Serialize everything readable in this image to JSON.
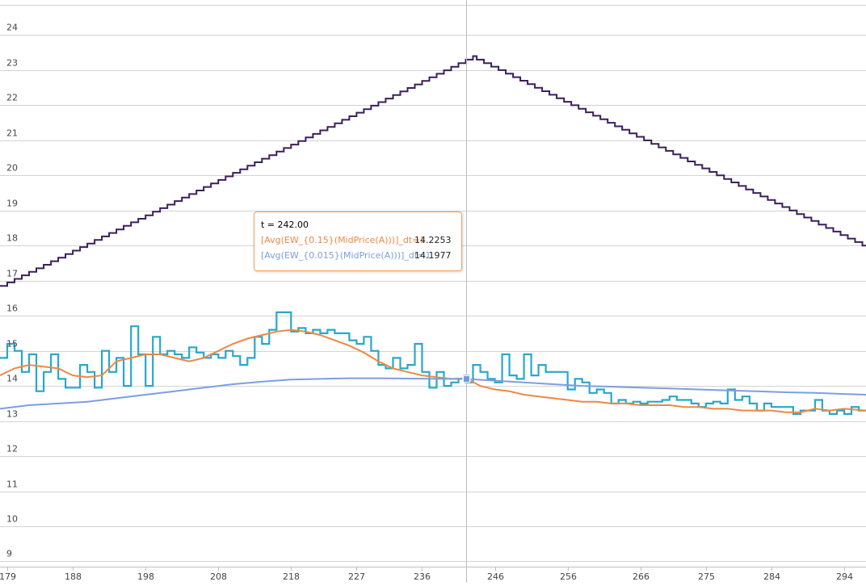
{
  "chart_data": {
    "type": "line",
    "title": "",
    "xlabel": "",
    "ylabel": "",
    "xlim": [
      178,
      297
    ],
    "ylim": [
      8.85,
      25
    ],
    "x_ticks": [
      179,
      188,
      198,
      208,
      218,
      227,
      236,
      246,
      256,
      266,
      275,
      284,
      294
    ],
    "y_ticks": [
      9,
      10,
      11,
      12,
      13,
      14,
      15,
      16,
      17,
      18,
      19,
      20,
      21,
      22,
      23,
      24
    ],
    "grid": true,
    "legend": "none",
    "crosshair_x": 242,
    "series": [
      {
        "name": "",
        "color": "#3b1f5c",
        "shape": "step",
        "points": [
          [
            178,
            16.85
          ],
          [
            242.5,
            23.4
          ],
          [
            297,
            17.9
          ]
        ],
        "step": 1
      },
      {
        "name": "",
        "color": "#27a8c9",
        "shape": "step",
        "points": [
          [
            178,
            14.8
          ],
          [
            179,
            15.2
          ],
          [
            180,
            15.0
          ],
          [
            181,
            14.4
          ],
          [
            182,
            14.9
          ],
          [
            183,
            13.85
          ],
          [
            184,
            14.4
          ],
          [
            185,
            14.9
          ],
          [
            186,
            14.2
          ],
          [
            187,
            13.95
          ],
          [
            188,
            13.95
          ],
          [
            189,
            14.6
          ],
          [
            190,
            14.4
          ],
          [
            191,
            13.95
          ],
          [
            192,
            15.0
          ],
          [
            193,
            14.4
          ],
          [
            194,
            14.8
          ],
          [
            195,
            14.0
          ],
          [
            196,
            15.7
          ],
          [
            197,
            14.9
          ],
          [
            198,
            14.0
          ],
          [
            199,
            15.4
          ],
          [
            200,
            14.9
          ],
          [
            201,
            15.0
          ],
          [
            202,
            14.9
          ],
          [
            203,
            14.8
          ],
          [
            204,
            15.1
          ],
          [
            205,
            14.95
          ],
          [
            206,
            14.8
          ],
          [
            207,
            14.9
          ],
          [
            208,
            14.8
          ],
          [
            209,
            15.0
          ],
          [
            210,
            14.85
          ],
          [
            211,
            14.6
          ],
          [
            212,
            14.8
          ],
          [
            213,
            15.4
          ],
          [
            214,
            15.2
          ],
          [
            215,
            15.6
          ],
          [
            216,
            16.1
          ],
          [
            217,
            16.1
          ],
          [
            218,
            15.55
          ],
          [
            219,
            15.65
          ],
          [
            220,
            15.5
          ],
          [
            221,
            15.6
          ],
          [
            222,
            15.5
          ],
          [
            223,
            15.6
          ],
          [
            224,
            15.5
          ],
          [
            225,
            15.5
          ],
          [
            226,
            15.3
          ],
          [
            227,
            15.2
          ],
          [
            228,
            15.4
          ],
          [
            229,
            15.0
          ],
          [
            230,
            14.6
          ],
          [
            231,
            14.5
          ],
          [
            232,
            14.8
          ],
          [
            233,
            14.5
          ],
          [
            234,
            14.6
          ],
          [
            235,
            15.2
          ],
          [
            236,
            14.4
          ],
          [
            237,
            13.95
          ],
          [
            238,
            14.4
          ],
          [
            239,
            14.0
          ],
          [
            240,
            14.1
          ],
          [
            241,
            14.2
          ],
          [
            242,
            14.1
          ],
          [
            243,
            14.6
          ],
          [
            244,
            14.4
          ],
          [
            245,
            14.2
          ],
          [
            246,
            14.1
          ],
          [
            247,
            14.9
          ],
          [
            248,
            14.3
          ],
          [
            249,
            14.2
          ],
          [
            250,
            14.9
          ],
          [
            251,
            14.3
          ],
          [
            252,
            14.6
          ],
          [
            253,
            14.4
          ],
          [
            254,
            14.4
          ],
          [
            255,
            14.4
          ],
          [
            256,
            13.9
          ],
          [
            257,
            14.2
          ],
          [
            258,
            14.1
          ],
          [
            259,
            13.8
          ],
          [
            260,
            13.9
          ],
          [
            261,
            13.8
          ],
          [
            262,
            13.5
          ],
          [
            263,
            13.6
          ],
          [
            264,
            13.5
          ],
          [
            265,
            13.55
          ],
          [
            266,
            13.5
          ],
          [
            267,
            13.55
          ],
          [
            268,
            13.55
          ],
          [
            269,
            13.6
          ],
          [
            270,
            13.7
          ],
          [
            271,
            13.6
          ],
          [
            272,
            13.6
          ],
          [
            273,
            13.5
          ],
          [
            274,
            13.4
          ],
          [
            275,
            13.5
          ],
          [
            276,
            13.55
          ],
          [
            277,
            13.5
          ],
          [
            278,
            13.9
          ],
          [
            279,
            13.6
          ],
          [
            280,
            13.7
          ],
          [
            281,
            13.5
          ],
          [
            282,
            13.3
          ],
          [
            283,
            13.5
          ],
          [
            284,
            13.4
          ],
          [
            285,
            13.4
          ],
          [
            286,
            13.4
          ],
          [
            287,
            13.2
          ],
          [
            288,
            13.3
          ],
          [
            289,
            13.3
          ],
          [
            290,
            13.6
          ],
          [
            291,
            13.3
          ],
          [
            292,
            13.2
          ],
          [
            293,
            13.3
          ],
          [
            294,
            13.2
          ],
          [
            295,
            13.4
          ],
          [
            296,
            13.3
          ],
          [
            297,
            13.3
          ]
        ]
      },
      {
        "name": "[Avg(EW_{0.15}(MidPrice(A)))]_dt=1",
        "color": "#ee8844",
        "shape": "line",
        "points": [
          [
            178,
            14.3
          ],
          [
            180,
            14.5
          ],
          [
            182,
            14.6
          ],
          [
            184,
            14.55
          ],
          [
            186,
            14.5
          ],
          [
            188,
            14.3
          ],
          [
            190,
            14.25
          ],
          [
            192,
            14.3
          ],
          [
            194,
            14.7
          ],
          [
            196,
            14.8
          ],
          [
            198,
            14.9
          ],
          [
            200,
            14.9
          ],
          [
            202,
            14.8
          ],
          [
            204,
            14.7
          ],
          [
            206,
            14.8
          ],
          [
            208,
            15.0
          ],
          [
            210,
            15.2
          ],
          [
            212,
            15.35
          ],
          [
            214,
            15.45
          ],
          [
            216,
            15.55
          ],
          [
            218,
            15.6
          ],
          [
            220,
            15.55
          ],
          [
            222,
            15.45
          ],
          [
            224,
            15.3
          ],
          [
            226,
            15.15
          ],
          [
            228,
            14.95
          ],
          [
            230,
            14.7
          ],
          [
            232,
            14.5
          ],
          [
            234,
            14.4
          ],
          [
            236,
            14.3
          ],
          [
            238,
            14.25
          ],
          [
            240,
            14.2
          ],
          [
            242,
            14.22
          ],
          [
            244,
            14.0
          ],
          [
            246,
            13.9
          ],
          [
            248,
            13.85
          ],
          [
            250,
            13.75
          ],
          [
            252,
            13.7
          ],
          [
            254,
            13.65
          ],
          [
            256,
            13.6
          ],
          [
            258,
            13.55
          ],
          [
            260,
            13.55
          ],
          [
            262,
            13.5
          ],
          [
            264,
            13.5
          ],
          [
            266,
            13.45
          ],
          [
            268,
            13.45
          ],
          [
            270,
            13.45
          ],
          [
            272,
            13.4
          ],
          [
            274,
            13.4
          ],
          [
            276,
            13.35
          ],
          [
            278,
            13.35
          ],
          [
            280,
            13.3
          ],
          [
            282,
            13.3
          ],
          [
            284,
            13.3
          ],
          [
            286,
            13.25
          ],
          [
            288,
            13.25
          ],
          [
            290,
            13.35
          ],
          [
            292,
            13.3
          ],
          [
            294,
            13.35
          ],
          [
            297,
            13.3
          ]
        ]
      },
      {
        "name": "[Avg(EW_{0.015}(MidPrice(A)))]_dt=1",
        "color": "#7b9fe0",
        "shape": "line",
        "points": [
          [
            178,
            13.35
          ],
          [
            182,
            13.45
          ],
          [
            186,
            13.5
          ],
          [
            190,
            13.55
          ],
          [
            194,
            13.65
          ],
          [
            198,
            13.75
          ],
          [
            202,
            13.85
          ],
          [
            206,
            13.95
          ],
          [
            210,
            14.05
          ],
          [
            214,
            14.12
          ],
          [
            218,
            14.18
          ],
          [
            222,
            14.2
          ],
          [
            226,
            14.22
          ],
          [
            230,
            14.22
          ],
          [
            234,
            14.21
          ],
          [
            238,
            14.2
          ],
          [
            242,
            14.2
          ],
          [
            246,
            14.15
          ],
          [
            250,
            14.1
          ],
          [
            254,
            14.05
          ],
          [
            258,
            14.0
          ],
          [
            262,
            13.98
          ],
          [
            266,
            13.95
          ],
          [
            270,
            13.93
          ],
          [
            274,
            13.9
          ],
          [
            278,
            13.87
          ],
          [
            282,
            13.85
          ],
          [
            286,
            13.82
          ],
          [
            290,
            13.8
          ],
          [
            294,
            13.77
          ],
          [
            297,
            13.75
          ]
        ]
      }
    ],
    "tooltip": {
      "title": "t = 242.00",
      "rows": [
        {
          "name": "[Avg(EW_{0.15}(MidPrice(A)))]_dt=1",
          "value": "14.2253",
          "color": "#ee8844"
        },
        {
          "name": "[Avg(EW_{0.015}(MidPrice(A)))]_dt=1",
          "value": "14.1977",
          "color": "#7b9fe0"
        }
      ]
    }
  }
}
